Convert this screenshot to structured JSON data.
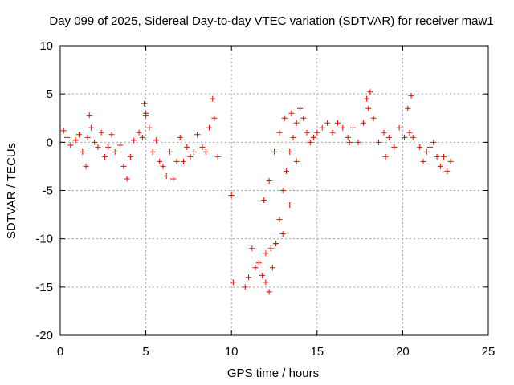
{
  "chart_data": {
    "type": "scatter",
    "title": "Day 099 of 2025, Sidereal Day-to-day VTEC variation (SDTVAR) for receiver maw1",
    "xlabel": "GPS time / hours",
    "ylabel": "SDTVAR / TECUs",
    "xlim": [
      0,
      25
    ],
    "ylim": [
      -20,
      10
    ],
    "xticks": [
      0,
      5,
      10,
      15,
      20,
      25
    ],
    "yticks": [
      -20,
      -15,
      -10,
      -5,
      0,
      5,
      10
    ],
    "grid": true,
    "marker": "+",
    "color": "#ff0000",
    "series": [
      {
        "name": "SDTVAR",
        "x": [
          0.2,
          0.4,
          0.6,
          0.9,
          1.1,
          1.3,
          1.5,
          1.6,
          1.7,
          1.8,
          2.0,
          2.2,
          2.4,
          2.6,
          2.8,
          3.0,
          3.2,
          3.5,
          3.7,
          3.9,
          4.1,
          4.3,
          4.6,
          4.8,
          5.0,
          5.2,
          5.4,
          5.6,
          5.8,
          6.0,
          6.2,
          6.4,
          6.6,
          6.8,
          7.0,
          7.2,
          7.4,
          7.6,
          7.8,
          8.0,
          8.3,
          8.5,
          8.7,
          8.9,
          9.0,
          9.2,
          10.0,
          10.1,
          10.8,
          11.0,
          11.2,
          11.4,
          11.6,
          11.8,
          12.0,
          12.2,
          12.4,
          12.6,
          12.8,
          13.0,
          13.2,
          13.4,
          13.6,
          13.8,
          14.0,
          14.2,
          14.4,
          14.6,
          14.8,
          15.0,
          15.3,
          15.6,
          15.9,
          16.2,
          16.5,
          16.8,
          17.1,
          17.4,
          17.7,
          18.0,
          18.3,
          18.6,
          18.9,
          19.2,
          19.5,
          19.8,
          20.1,
          20.4,
          20.6,
          21.0,
          21.2,
          21.4,
          21.6,
          21.8,
          22.0,
          22.2,
          22.4,
          22.6,
          22.8,
          13.8,
          13.4,
          13.0,
          12.6,
          12.3,
          12.0,
          11.9,
          12.2,
          12.5,
          12.8,
          13.1,
          13.5,
          17.9,
          18.1,
          16.9,
          20.3,
          20.5,
          19.0,
          4.9,
          5.0
        ],
        "y": [
          1.2,
          0.5,
          -0.3,
          0.2,
          0.8,
          -1.0,
          -2.5,
          0.5,
          2.8,
          1.5,
          0.0,
          -0.5,
          1.0,
          -1.5,
          -0.5,
          0.8,
          -1.0,
          -0.3,
          -2.5,
          -3.8,
          -1.5,
          0.2,
          1.0,
          0.5,
          2.8,
          1.5,
          -1.0,
          0.2,
          -2.0,
          -2.5,
          -3.5,
          -1.0,
          -3.8,
          -2.0,
          0.5,
          -2.0,
          -0.5,
          -1.5,
          -1.0,
          0.8,
          -0.5,
          -1.0,
          1.5,
          4.5,
          2.5,
          -1.5,
          -5.5,
          -14.5,
          -15.0,
          -14.0,
          -11.0,
          -13.0,
          -12.5,
          -13.8,
          -14.5,
          -15.5,
          -13.0,
          -10.5,
          -8.0,
          -5.0,
          -3.0,
          -1.0,
          0.5,
          2.0,
          3.5,
          2.5,
          1.0,
          0.0,
          0.5,
          1.0,
          1.5,
          2.0,
          1.0,
          2.0,
          1.5,
          0.5,
          1.5,
          0.0,
          2.0,
          3.5,
          2.5,
          0.0,
          1.0,
          0.5,
          -0.5,
          1.5,
          0.5,
          1.0,
          0.5,
          -0.5,
          -2.0,
          -1.0,
          -0.5,
          0.0,
          -1.5,
          -2.5,
          -1.5,
          -3.0,
          -2.0,
          -2.0,
          -6.5,
          -9.5,
          -10.5,
          -11.0,
          -11.5,
          -6.0,
          -4.0,
          -1.0,
          1.0,
          2.5,
          3.0,
          4.5,
          5.2,
          0.0,
          3.5,
          4.8,
          -1.5,
          4.0,
          3.0
        ]
      }
    ]
  }
}
